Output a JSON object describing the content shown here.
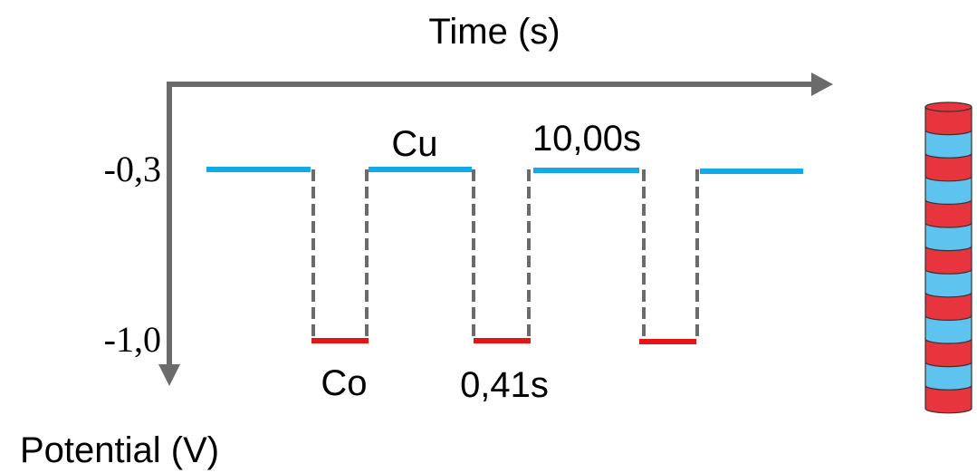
{
  "axes": {
    "x_label": "Time (s)",
    "y_label": "Potential (V)",
    "y_levels": [
      "-0,3",
      "-1,0"
    ]
  },
  "annotations": {
    "cu_label": "Cu",
    "cu_duration": "10,00s",
    "co_label": "Co",
    "co_duration": "0,41s"
  }
}
